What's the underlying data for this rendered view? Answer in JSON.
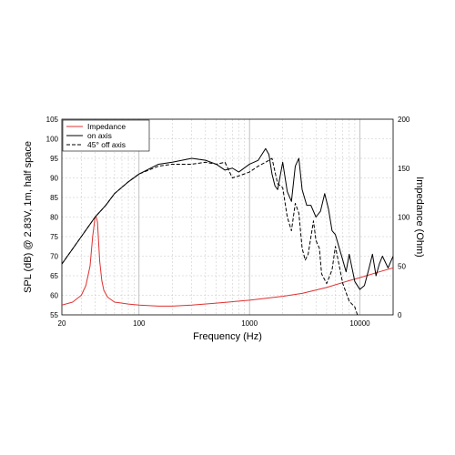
{
  "chart_data": {
    "type": "line",
    "xlabel": "Frequency (Hz)",
    "ylabel": "SPL (dB) @ 2.83V, 1m, half space",
    "y2label": "Impedance (Ohm)",
    "xscale": "log",
    "xlim": [
      20,
      20000
    ],
    "ylim": [
      55,
      105
    ],
    "y2lim": [
      0,
      200
    ],
    "grid": true,
    "legend_position": "top-left",
    "x_ticks": [
      20,
      100,
      1000,
      10000
    ],
    "x_tick_labels": [
      "20",
      "100",
      "1000",
      "10000"
    ],
    "y_ticks": [
      55,
      60,
      65,
      70,
      75,
      80,
      85,
      90,
      95,
      100,
      105
    ],
    "y_tick_labels": [
      "55",
      "60",
      "65",
      "70",
      "75",
      "80",
      "85",
      "90",
      "95",
      "100",
      "105"
    ],
    "y2_ticks": [
      0,
      50,
      100,
      150,
      200
    ],
    "y2_tick_labels": [
      "0",
      "50",
      "100",
      "150",
      "200"
    ],
    "series": [
      {
        "name": "Impedance",
        "axis": "right",
        "color": "#e03030",
        "dash": "solid",
        "x": [
          20,
          25,
          30,
          33,
          36,
          38,
          40,
          41,
          42,
          43,
          44,
          46,
          48,
          52,
          60,
          80,
          100,
          150,
          200,
          300,
          500,
          1000,
          2000,
          3000,
          5000,
          8000,
          10000,
          15000,
          20000
        ],
        "y": [
          10,
          13,
          20,
          30,
          50,
          80,
          100,
          100,
          95,
          75,
          55,
          35,
          25,
          18,
          13,
          11,
          10,
          9,
          9,
          10,
          12,
          15,
          19,
          22,
          28,
          35,
          38,
          44,
          48
        ]
      },
      {
        "name": "on axis",
        "axis": "left",
        "color": "#000000",
        "dash": "solid",
        "x": [
          20,
          30,
          40,
          50,
          60,
          80,
          100,
          150,
          200,
          300,
          400,
          500,
          600,
          700,
          800,
          1000,
          1200,
          1400,
          1500,
          1600,
          1700,
          1800,
          2000,
          2200,
          2400,
          2600,
          2800,
          3000,
          3300,
          3600,
          4000,
          4400,
          4800,
          5200,
          5600,
          6000,
          7000,
          7500,
          8000,
          9000,
          10000,
          11000,
          12000,
          13000,
          14000,
          15000,
          16000,
          18000,
          20000
        ],
        "y": [
          68,
          75,
          80,
          83,
          86,
          89,
          91,
          93.5,
          94,
          95,
          94.5,
          93.5,
          92,
          92.5,
          91.5,
          93.5,
          94.5,
          97.5,
          96,
          91,
          88,
          87,
          94,
          86.5,
          84,
          93,
          95,
          87,
          83,
          83,
          80,
          81.5,
          86,
          82,
          76.5,
          75.5,
          69,
          66,
          70.5,
          63.5,
          61.5,
          62.5,
          66.5,
          70.5,
          65,
          68,
          70,
          67,
          70
        ]
      },
      {
        "name": "45° off axis",
        "axis": "left",
        "color": "#000000",
        "dash": "dashed",
        "x": [
          20,
          30,
          40,
          50,
          60,
          80,
          100,
          150,
          200,
          300,
          400,
          500,
          600,
          700,
          800,
          1000,
          1200,
          1400,
          1600,
          1800,
          2000,
          2200,
          2400,
          2600,
          2800,
          3000,
          3200,
          3400,
          3800,
          4000,
          4300,
          4500,
          5000,
          5600,
          6000,
          7000,
          8000,
          9000,
          9500
        ],
        "y": [
          68,
          75,
          80,
          83,
          86,
          89,
          91,
          93,
          93.5,
          93.5,
          94,
          93.5,
          94,
          90,
          90.5,
          91.5,
          93,
          94,
          95,
          88.5,
          87.5,
          80,
          76.5,
          83.5,
          81,
          72,
          69,
          70.5,
          79,
          74,
          72,
          65.5,
          63,
          66.5,
          72.5,
          63,
          58.5,
          57,
          55
        ]
      }
    ]
  }
}
